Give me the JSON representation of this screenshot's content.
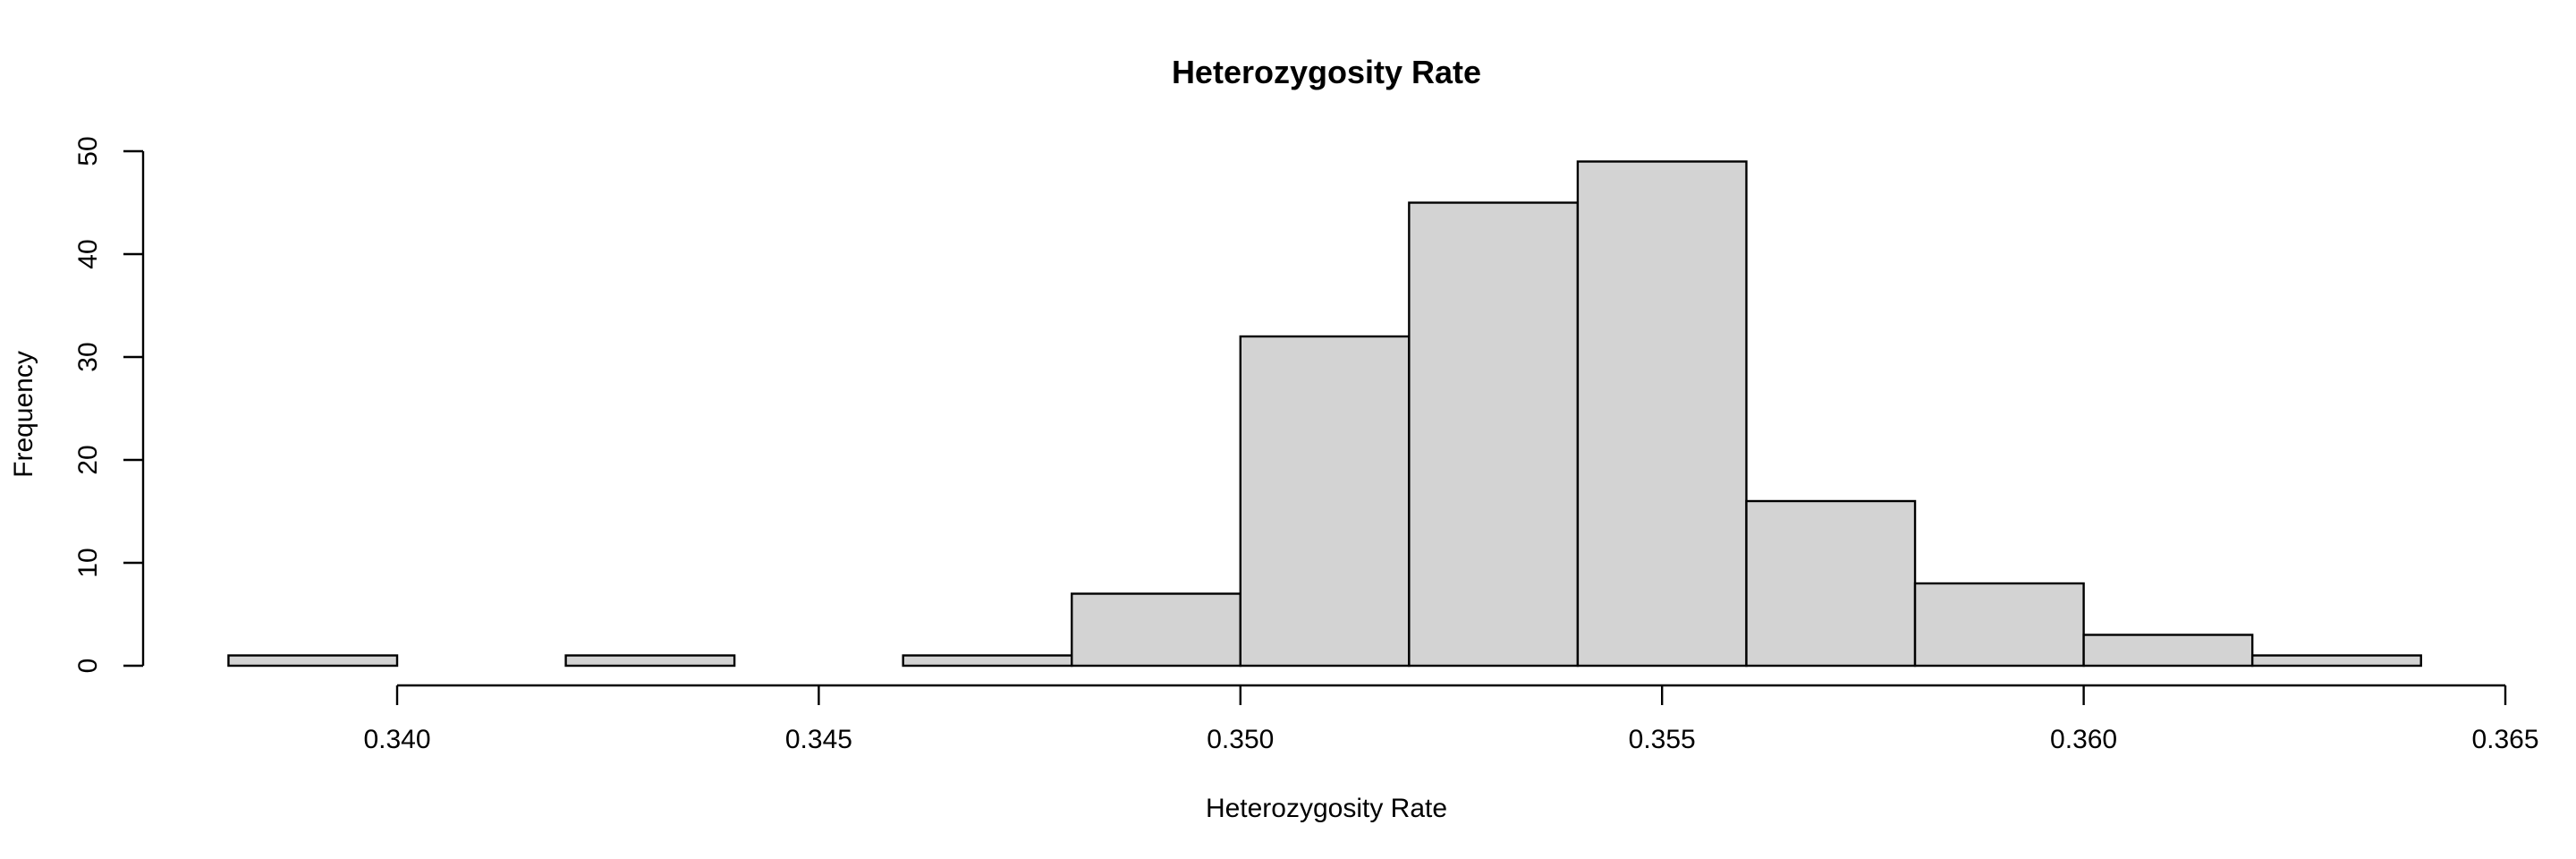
{
  "chart_data": {
    "type": "bar",
    "title": "Heterozygosity Rate",
    "xlabel": "Heterozygosity Rate",
    "ylabel": "Frequency",
    "bins": [
      {
        "start": 0.338,
        "end": 0.34,
        "count": 1
      },
      {
        "start": 0.34,
        "end": 0.342,
        "count": 0
      },
      {
        "start": 0.342,
        "end": 0.344,
        "count": 1
      },
      {
        "start": 0.344,
        "end": 0.346,
        "count": 0
      },
      {
        "start": 0.346,
        "end": 0.348,
        "count": 1
      },
      {
        "start": 0.348,
        "end": 0.35,
        "count": 7
      },
      {
        "start": 0.35,
        "end": 0.352,
        "count": 32
      },
      {
        "start": 0.352,
        "end": 0.354,
        "count": 45
      },
      {
        "start": 0.354,
        "end": 0.356,
        "count": 49
      },
      {
        "start": 0.356,
        "end": 0.358,
        "count": 16
      },
      {
        "start": 0.358,
        "end": 0.36,
        "count": 8
      },
      {
        "start": 0.36,
        "end": 0.362,
        "count": 3
      },
      {
        "start": 0.362,
        "end": 0.364,
        "count": 1
      }
    ],
    "xlim": [
      0.338,
      0.364
    ],
    "ylim": [
      0,
      50
    ],
    "x_ticks": [
      0.34,
      0.345,
      0.35,
      0.355,
      0.36,
      0.365
    ],
    "x_tick_labels": [
      "0.340",
      "0.345",
      "0.350",
      "0.355",
      "0.360",
      "0.365"
    ],
    "y_ticks": [
      0,
      10,
      20,
      30,
      40,
      50
    ],
    "y_tick_labels": [
      "0",
      "10",
      "20",
      "30",
      "40",
      "50"
    ],
    "grid": false,
    "legend": "none"
  }
}
